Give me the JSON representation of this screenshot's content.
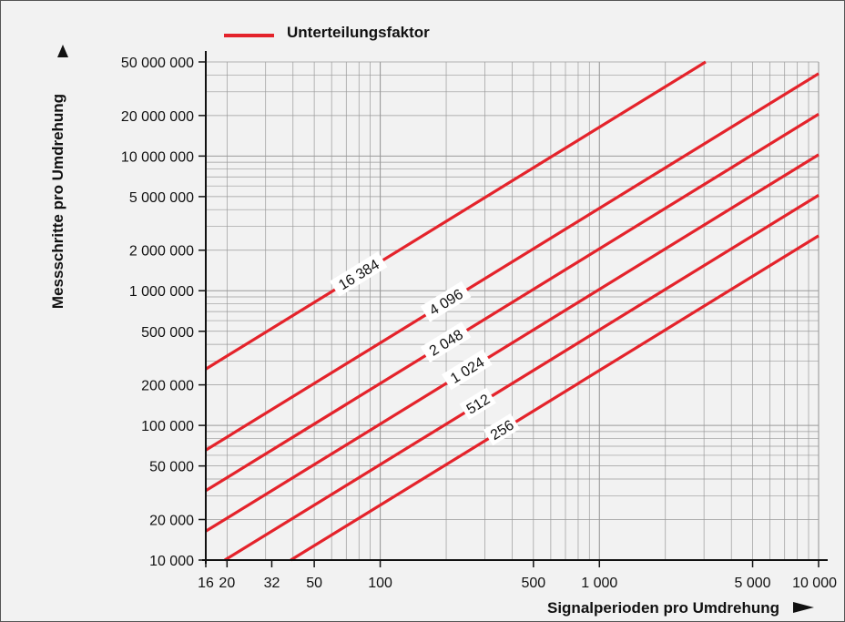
{
  "colors": {
    "series": "#e4232b",
    "grid": "#9a9a9a",
    "axis": "#111111",
    "panel": "#f2f2f2"
  },
  "chart_data": {
    "type": "line",
    "legend": "Unterteilungsfaktor",
    "legend_position": "top-left",
    "xlabel": "Signalperioden pro Umdrehung",
    "ylabel": "Messschritte pro Umdrehung",
    "x_scale": "log",
    "y_scale": "log",
    "xlim": [
      16,
      10000
    ],
    "ylim": [
      10000,
      50000000
    ],
    "grid": true,
    "x_ticks": [
      {
        "value": 16,
        "label": "16"
      },
      {
        "value": 20,
        "label": "20"
      },
      {
        "value": 32,
        "label": "32"
      },
      {
        "value": 50,
        "label": "50"
      },
      {
        "value": 100,
        "label": "100"
      },
      {
        "value": 500,
        "label": "500"
      },
      {
        "value": 1000,
        "label": "1 000"
      },
      {
        "value": 5000,
        "label": "5 000"
      },
      {
        "value": 10000,
        "label": "10 000"
      }
    ],
    "y_ticks": [
      {
        "value": 10000,
        "label": "10 000"
      },
      {
        "value": 20000,
        "label": "20 000"
      },
      {
        "value": 50000,
        "label": "50 000"
      },
      {
        "value": 100000,
        "label": "100 000"
      },
      {
        "value": 200000,
        "label": "200 000"
      },
      {
        "value": 500000,
        "label": "500 000"
      },
      {
        "value": 1000000,
        "label": "1 000 000"
      },
      {
        "value": 2000000,
        "label": "2 000 000"
      },
      {
        "value": 5000000,
        "label": "5 000 000"
      },
      {
        "value": 10000000,
        "label": "10 000 000"
      },
      {
        "value": 20000000,
        "label": "20 000 000"
      },
      {
        "value": 50000000,
        "label": "50 000 000"
      }
    ],
    "series": [
      {
        "factor": 16384,
        "label": "16 384",
        "label_at_x": 80
      },
      {
        "factor": 4096,
        "label": "4 096",
        "label_at_x": 200
      },
      {
        "factor": 2048,
        "label": "2 048",
        "label_at_x": 200
      },
      {
        "factor": 1024,
        "label": "1 024",
        "label_at_x": 250
      },
      {
        "factor": 512,
        "label": "512",
        "label_at_x": 280
      },
      {
        "factor": 256,
        "label": "256",
        "label_at_x": 360
      }
    ]
  }
}
